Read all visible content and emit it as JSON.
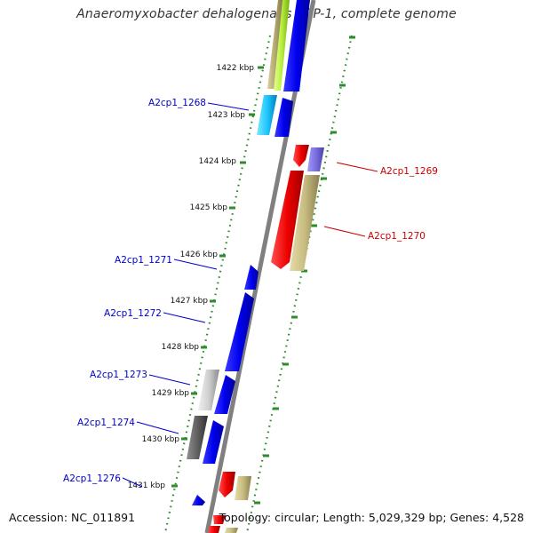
{
  "title": "Anaeromyxobacter dehalogenans 2CP-1, complete genome",
  "footer": {
    "accession": "Accession: NC_011891",
    "info": "Topology: circular; Length: 5,029,329 bp; Genes: 4,528"
  },
  "colors": {
    "forward_label": "#0000cc",
    "reverse_label": "#cc0000",
    "tick": "#2e8b2e",
    "backbone": "#808080"
  },
  "kbp_ticks": [
    "1422 kbp",
    "1423 kbp",
    "1424 kbp",
    "1425 kbp",
    "1426 kbp",
    "1427 kbp",
    "1428 kbp",
    "1429 kbp",
    "1430 kbp",
    "1431 kbp"
  ],
  "forward_gene_labels": [
    "A2cp1_1268",
    "A2cp1_1271",
    "A2cp1_1272",
    "A2cp1_1273",
    "A2cp1_1274",
    "A2cp1_1276"
  ],
  "reverse_gene_labels": [
    "A2cp1_1269",
    "A2cp1_1270"
  ]
}
